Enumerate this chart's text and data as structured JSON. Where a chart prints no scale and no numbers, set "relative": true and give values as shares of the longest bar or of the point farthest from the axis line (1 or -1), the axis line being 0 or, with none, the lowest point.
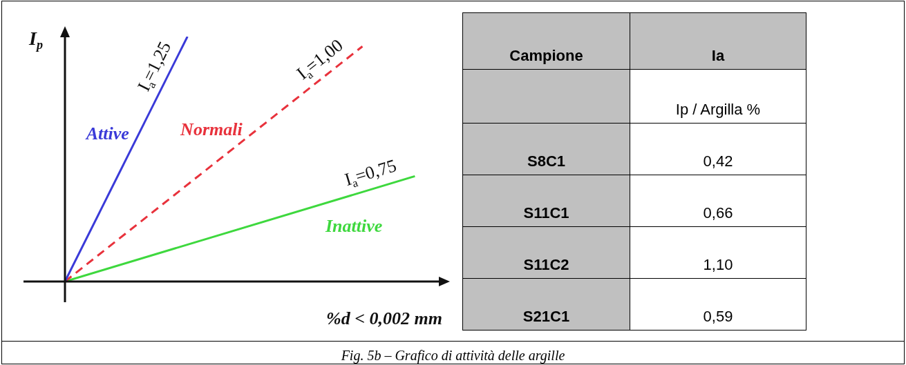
{
  "chart_data": [
    {
      "type": "line",
      "relative": true,
      "xlabel": "%d < 0,002 mm",
      "ylabel": "I$_{p}$",
      "legend": false,
      "marker": "none",
      "categories": [
        null,
        null,
        null,
        null,
        null,
        null,
        null,
        null,
        null,
        null,
        null,
        null,
        null,
        null,
        null,
        null,
        null,
        null,
        null,
        null,
        null,
        null,
        null
      ],
      "series": [
        {
          "name": "I$_{a}$=1,25",
          "color": "#3a3ad8",
          "values": [
            0,
            null,
            null,
            null,
            null,
            null,
            null,
            1,
            null,
            null,
            null,
            null,
            null,
            null,
            null,
            null,
            null,
            null,
            null,
            null,
            null,
            null,
            null
          ],
          "line_style": "solid"
        },
        {
          "name": "I$_{a}$=1,00",
          "color": "#e8323c",
          "values": [
            0,
            null,
            null,
            null,
            null,
            null,
            null,
            null,
            null,
            null,
            null,
            null,
            null,
            null,
            null,
            null,
            null,
            0.96,
            null,
            null,
            null,
            null,
            null
          ],
          "line_style": "dashed"
        },
        {
          "name": "I$_{a}$=0,75",
          "color": "#3ed83e",
          "values": [
            0,
            null,
            null,
            null,
            null,
            null,
            null,
            null,
            null,
            null,
            null,
            null,
            null,
            null,
            null,
            null,
            null,
            null,
            null,
            null,
            0.43,
            null,
            null
          ],
          "line_style": "solid"
        }
      ],
      "annotations": [
        "Attive",
        "Normali",
        "Inattive",
        "Fig. 5b – Grafico di attività delle argille"
      ]
    },
    {
      "type": "other",
      "xlabel": "Campione",
      "ylabel": "Ia",
      "subtitle": "Ip / Argilla %",
      "categories": [
        "S8C1",
        "S11C1",
        "S11C2",
        "S21C1"
      ],
      "value_labels": [
        "0,42",
        "0,66",
        "1,10",
        "0,59"
      ]
    }
  ]
}
